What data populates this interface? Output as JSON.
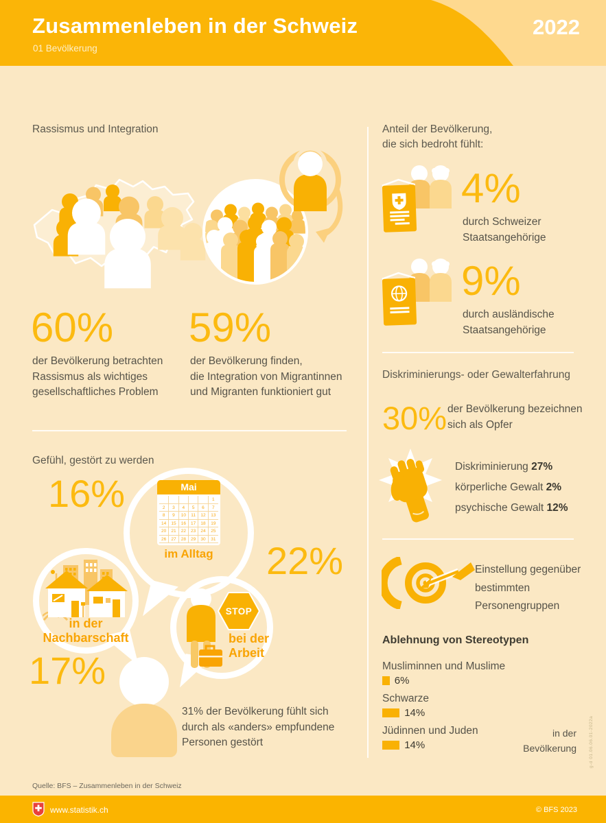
{
  "header": {
    "title": "Zusammenleben in der Schweiz",
    "subtitle": "01 Bevölkerung",
    "year": "2022"
  },
  "left": {
    "racism": {
      "heading": "Rassismus und Integration",
      "stats": [
        {
          "value": "60%",
          "lines": [
            "der Bevölkerung betrachten",
            "Rassismus als wichtiges",
            "gesellschaftliches Problem"
          ]
        },
        {
          "value": "59%",
          "lines": [
            "der Bevölkerung finden,",
            "die Integration von Migrantinnen",
            "und Migranten funktioniert gut"
          ]
        }
      ]
    },
    "disturbed": {
      "heading": "Gefühl, gestört zu werden",
      "everyday": {
        "value": "16%",
        "label": "im Alltag"
      },
      "work": {
        "value": "22%",
        "label_lines": [
          "bei der",
          "Arbeit"
        ],
        "stop_text": "STOP"
      },
      "neighborhood": {
        "value": "17%",
        "label_lines": [
          "in der",
          "Nachbarschaft"
        ]
      },
      "note_lines": [
        "31% der Bevölkerung fühlt sich",
        "durch als «anders» empfundene",
        "Personen gestört"
      ]
    }
  },
  "right": {
    "threat": {
      "heading_lines": [
        "Anteil der Bevölkerung,",
        "die sich bedroht fühlt:"
      ],
      "items": [
        {
          "value": "4%",
          "caption_lines": [
            "durch Schweizer",
            "Staatsangehörige"
          ]
        },
        {
          "value": "9%",
          "caption_lines": [
            "durch ausländische",
            "Staatsangehörige"
          ]
        }
      ]
    },
    "experience": {
      "heading": "Diskriminierungs- oder Gewalterfahrung",
      "victims": {
        "value": "30%",
        "caption_lines": [
          "der Bevölkerung bezeichnen",
          "sich als Opfer"
        ]
      },
      "items": [
        {
          "label": "Diskriminierung",
          "value": "27%"
        },
        {
          "label": "körperliche Gewalt",
          "value": "2%"
        },
        {
          "label": "psychische Gewalt",
          "value": "12%"
        }
      ]
    },
    "attitude": {
      "intro_lines": [
        "Einstellung gegenüber",
        "bestimmten",
        "Personengruppen"
      ],
      "heading": "Ablehnung von Stereotypen",
      "groups": [
        {
          "label": "Musliminnen und Muslime",
          "value": "6%"
        },
        {
          "label": "Schwarze",
          "value": "14%"
        },
        {
          "label": "Jüdinnen und Juden",
          "value": "14%"
        }
      ],
      "note_lines": [
        "in der",
        "Bevölkerung"
      ]
    }
  },
  "calendar": {
    "month": "Mai",
    "weeks": [
      [
        "",
        "",
        "",
        "",
        "",
        "1"
      ],
      [
        "2",
        "3",
        "4",
        "5",
        "6",
        "7"
      ],
      [
        "8",
        "9",
        "10",
        "11",
        "12",
        "13"
      ],
      [
        "14",
        "15",
        "16",
        "17",
        "18",
        "19"
      ],
      [
        "20",
        "21",
        "22",
        "23",
        "24",
        "25"
      ],
      [
        "26",
        "27",
        "28",
        "29",
        "30",
        "31"
      ]
    ]
  },
  "source": {
    "text": "Quelle: BFS – Zusammenleben in der Schweiz"
  },
  "footer": {
    "url": "www.statistik.ch",
    "copyright": "© BFS 2023"
  },
  "meta": {
    "figure_id": "g-d 01.06.06.01-2022a"
  },
  "colors": {
    "header_orange": "#FBB507",
    "corner_light": "#FED98F",
    "background": "#FBE8C4",
    "icon_orange": "#F9B104",
    "number_yellow": "#FCBA10",
    "medium_orange": "#F8C566",
    "light_orange": "#FBD88F",
    "pale_orange": "#FCE2AC",
    "label_orange": "#F9A404",
    "text_gray": "#565349",
    "swiss_red": "#E8413C",
    "footer_bar": "#FBB400"
  },
  "chart_data": [
    {
      "type": "table",
      "title": "Zusammenleben in der Schweiz 2022 – 01 Bevölkerung",
      "rows": [
        [
          "der Bevölkerung betrachten Rassismus als wichtiges gesellschaftliches Problem",
          "60%"
        ],
        [
          "der Bevölkerung finden, die Integration von Migrantinnen und Migranten funktioniert gut",
          "59%"
        ],
        [
          "fühlt sich bedroht durch Schweizer Staatsangehörige",
          "4%"
        ],
        [
          "fühlt sich bedroht durch ausländische Staatsangehörige",
          "9%"
        ],
        [
          "der Bevölkerung bezeichnen sich als Opfer von Diskriminierung oder Gewalt",
          "30%"
        ],
        [
          "Diskriminierung",
          "27%"
        ],
        [
          "körperliche Gewalt",
          "2%"
        ],
        [
          "psychische Gewalt",
          "12%"
        ],
        [
          "Gefühl, gestört zu werden: im Alltag",
          "16%"
        ],
        [
          "Gefühl, gestört zu werden: bei der Arbeit",
          "22%"
        ],
        [
          "Gefühl, gestört zu werden: in der Nachbarschaft",
          "17%"
        ],
        [
          "der Bevölkerung fühlt sich durch als «anders» empfundene Personen gestört",
          "31%"
        ]
      ]
    },
    {
      "type": "bar",
      "title": "Ablehnung von Stereotypen (in der Bevölkerung)",
      "categories": [
        "Musliminnen und Muslime",
        "Schwarze",
        "Jüdinnen und Juden"
      ],
      "values": [
        6,
        14,
        14
      ],
      "unit": "%"
    }
  ]
}
